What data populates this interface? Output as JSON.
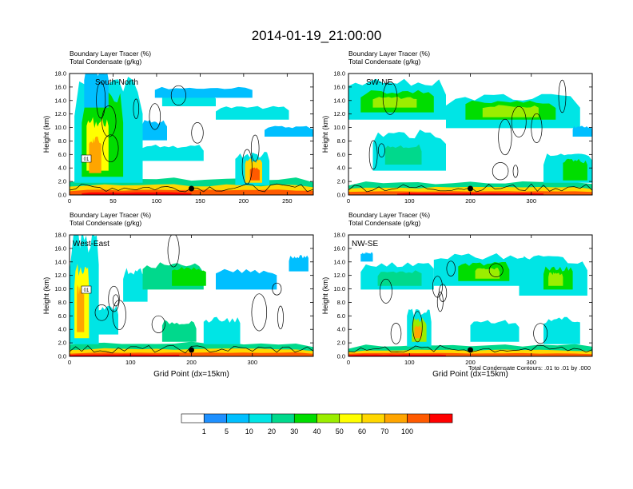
{
  "title": "2014-01-19_21:00:00",
  "colorbar": {
    "labels": [
      "1",
      "5",
      "10",
      "20",
      "30",
      "40",
      "50",
      "60",
      "70",
      "100"
    ],
    "colors": [
      "#ffffff",
      "#1e90ff",
      "#00bfff",
      "#00e5e5",
      "#00d98c",
      "#00dd00",
      "#9bee00",
      "#ffff00",
      "#ffd700",
      "#ffa500",
      "#ff5a00",
      "#ff0000"
    ]
  },
  "contour_note": "Total Condensate Contours: .01 to .01 by .000",
  "chart_data": [
    {
      "type": "heatmap",
      "name": "South-North",
      "line1": "Boundary Layer Tracer   (%)",
      "line2": "Total Condensate   (g/kg)",
      "ylabel": "Height (km)",
      "xlabel": "",
      "xmax": 280,
      "xticks": [
        "0",
        "50",
        "100",
        "150",
        "200",
        "250"
      ],
      "xtick_values": [
        0,
        50,
        100,
        150,
        200,
        250
      ],
      "ymax": 18,
      "yticks": [
        "0.0",
        "2.0",
        "4.0",
        "6.0",
        "8.0",
        "10.0",
        "12.0",
        "14.0",
        "16.0",
        "18.0"
      ],
      "marker_x": 140,
      "box_label": "01"
    },
    {
      "type": "heatmap",
      "name": "SW-NE",
      "line1": "Boundary Layer Tracer   (%)",
      "line2": "Total Condensate   (g/kg)",
      "ylabel": "Height (km)",
      "xlabel": "",
      "xmax": 400,
      "xticks": [
        "0",
        "100",
        "200",
        "300"
      ],
      "xtick_values": [
        0,
        100,
        200,
        300
      ],
      "ymax": 18,
      "yticks": [
        "0.0",
        "2.0",
        "4.0",
        "6.0",
        "8.0",
        "10.0",
        "12.0",
        "14.0",
        "16.0",
        "18.0"
      ],
      "marker_x": 200
    },
    {
      "type": "heatmap",
      "name": "West-East",
      "line1": "Boundary Layer Tracer   (%)",
      "line2": "Total Condensate   (g/kg)",
      "ylabel": "Height (km)",
      "xlabel": "Grid Point (dx=15km)",
      "xmax": 400,
      "xticks": [
        "0",
        "100",
        "200",
        "300"
      ],
      "xtick_values": [
        0,
        100,
        200,
        300
      ],
      "ymax": 18,
      "yticks": [
        "0.0",
        "2.0",
        "4.0",
        "6.0",
        "8.0",
        "10.0",
        "12.0",
        "14.0",
        "16.0",
        "18.0"
      ],
      "marker_x": 200,
      "box_label": "01"
    },
    {
      "type": "heatmap",
      "name": "NW-SE",
      "line1": "Boundary Layer Tracer   (%)",
      "line2": "Total Condensate   (g/kg)",
      "ylabel": "Height (km)",
      "xlabel": "Grid Point (dx=15km)",
      "xmax": 400,
      "xticks": [
        "0",
        "100",
        "200",
        "300"
      ],
      "xtick_values": [
        0,
        100,
        200,
        300
      ],
      "ymax": 18,
      "yticks": [
        "0.0",
        "2.0",
        "4.0",
        "6.0",
        "8.0",
        "10.0",
        "12.0",
        "14.0",
        "16.0",
        "18.0"
      ],
      "marker_x": 200
    }
  ]
}
